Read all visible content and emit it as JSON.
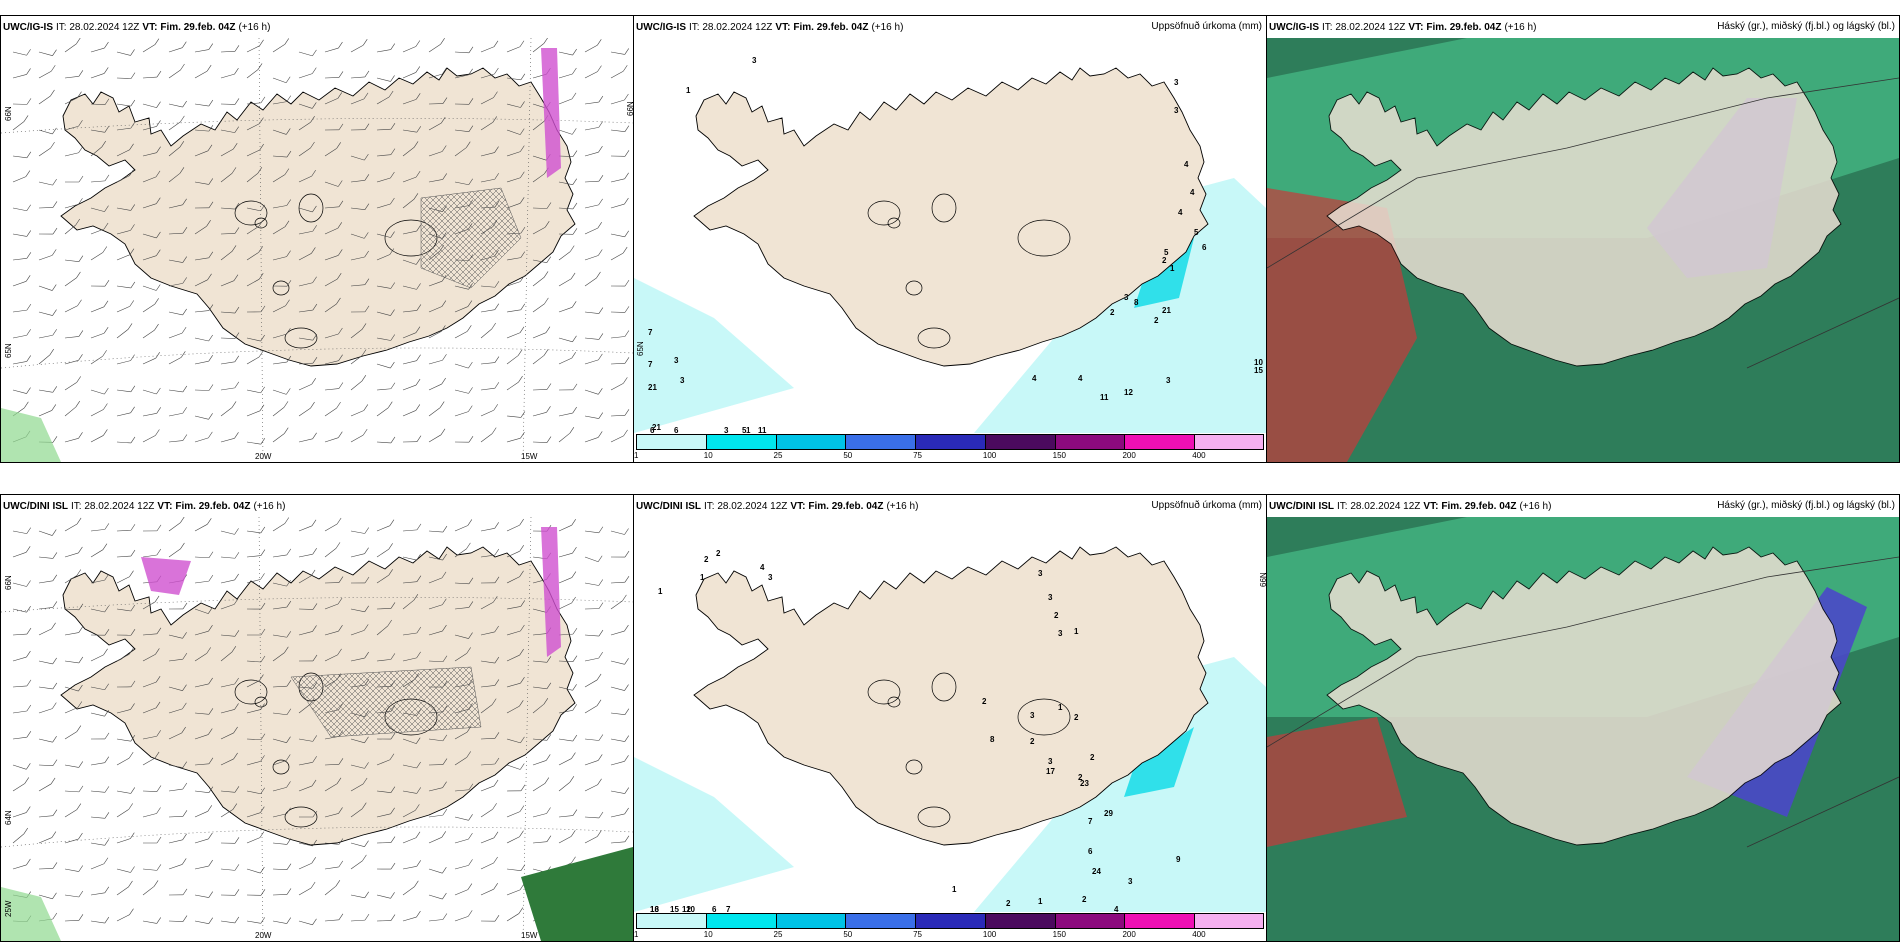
{
  "panels": [
    {
      "model": "UWC/IG-IS",
      "issue": "IT: 28.02.2024 12Z",
      "valid_label": "VT:",
      "valid": "Fim. 29.feb. 04Z",
      "lead": "(+16 h)",
      "right_title": "",
      "lat_labels": [
        "66N",
        "65N"
      ],
      "lon_labels": [
        "20W",
        "15W"
      ]
    },
    {
      "model": "UWC/IG-IS",
      "issue": "IT: 28.02.2024 12Z",
      "valid_label": "VT:",
      "valid": "Fim. 29.feb. 04Z",
      "lead": "(+16 h)",
      "right_title": "Uppsöfnuð úrkoma (mm)",
      "lat_labels": [
        "65N"
      ],
      "precip_values": [
        "1",
        "3",
        "3",
        "3",
        "4",
        "4",
        "4",
        "5",
        "5",
        "6",
        "2",
        "3",
        "8",
        "2",
        "4",
        "21",
        "10",
        "15",
        "4",
        "11",
        "12",
        "3",
        "2",
        "1",
        "7",
        "3",
        "7",
        "3",
        "21",
        "21",
        "6",
        "6",
        "3",
        "5",
        "1",
        "11"
      ]
    },
    {
      "model": "UWC/IG-IS",
      "issue": "IT: 28.02.2024 12Z",
      "valid_label": "VT:",
      "valid": "Fim. 29.feb. 04Z",
      "lead": "(+16 h)",
      "right_title": "Háský (gr.), miðský (fj.bl.) og lágský (bl.)"
    },
    {
      "model": "UWC/DINI ISL",
      "issue": "IT: 28.02.2024 12Z",
      "valid_label": "VT:",
      "valid": "Fim. 29.feb. 04Z",
      "lead": "(+16 h)",
      "right_title": "",
      "lat_labels": [
        "66N",
        "64N",
        "25W"
      ],
      "lon_labels": [
        "20W",
        "15W"
      ]
    },
    {
      "model": "UWC/DINI ISL",
      "issue": "IT: 28.02.2024 12Z",
      "valid_label": "VT:",
      "valid": "Fim. 29.feb. 04Z",
      "lead": "(+16 h)",
      "right_title": "Uppsöfnuð úrkoma (mm)",
      "lat_labels": [
        "66N"
      ],
      "precip_values": [
        "2",
        "2",
        "1",
        "1",
        "4",
        "3",
        "3",
        "3",
        "2",
        "3",
        "1",
        "1",
        "2",
        "3",
        "2",
        "8",
        "2",
        "2",
        "3",
        "17",
        "2",
        "23",
        "7",
        "29",
        "6",
        "24",
        "9",
        "3",
        "2",
        "4",
        "1",
        "2",
        "1",
        "13",
        "16",
        "10",
        "6",
        "7",
        "15",
        "12"
      ]
    },
    {
      "model": "UWC/DINI ISL",
      "issue": "IT: 28.02.2024 12Z",
      "valid_label": "VT:",
      "valid": "Fim. 29.feb. 04Z",
      "lead": "(+16 h)",
      "right_title": "Háský (gr.), miðský (fj.bl.) og lágský (bl.)"
    }
  ],
  "colorbar": {
    "ticks": [
      "1",
      "10",
      "25",
      "50",
      "75",
      "100",
      "150",
      "200",
      "400"
    ],
    "colors": [
      "#c8f8f8",
      "#00e6ee",
      "#00c3e6",
      "#3a6fe8",
      "#2a2ab8",
      "#4b0a5e",
      "#8c0a7e",
      "#ee10b4",
      "#f5b0f0"
    ]
  },
  "colors": {
    "land": "#f0e4d4",
    "precip_light": "#c8f8f8",
    "precip_mid": "#30e0ea",
    "high_cloud": "#2ab07a",
    "mid_cloud": "#4a48c8",
    "low_cloud": "#c83a3a"
  }
}
